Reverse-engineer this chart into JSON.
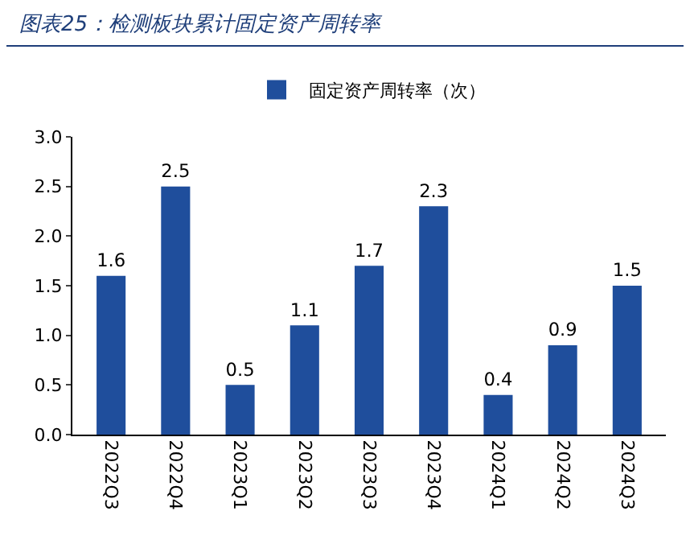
{
  "chart_data": {
    "type": "bar",
    "title": "图表25：检测板块累计固定资产周转率",
    "categories": [
      "2022Q3",
      "2022Q4",
      "2023Q1",
      "2023Q2",
      "2023Q3",
      "2023Q4",
      "2024Q1",
      "2024Q2",
      "2024Q3"
    ],
    "series": [
      {
        "name": "固定资产周转率（次）",
        "color": "#1f4e9c",
        "values": [
          1.6,
          2.5,
          0.5,
          1.1,
          1.7,
          2.3,
          0.4,
          0.9,
          1.5
        ]
      }
    ],
    "ylim": [
      0,
      3
    ],
    "yticks": [
      {
        "value": 0,
        "label": "0.0"
      },
      {
        "value": 0.5,
        "label": "0.5"
      },
      {
        "value": 1,
        "label": "1.0"
      },
      {
        "value": 1.5,
        "label": "1.5"
      },
      {
        "value": 2,
        "label": "2.0"
      },
      {
        "value": 2.5,
        "label": "2.5"
      },
      {
        "value": 3,
        "label": "3.0"
      }
    ],
    "data_labels": true,
    "grid": false,
    "legend": "top"
  }
}
